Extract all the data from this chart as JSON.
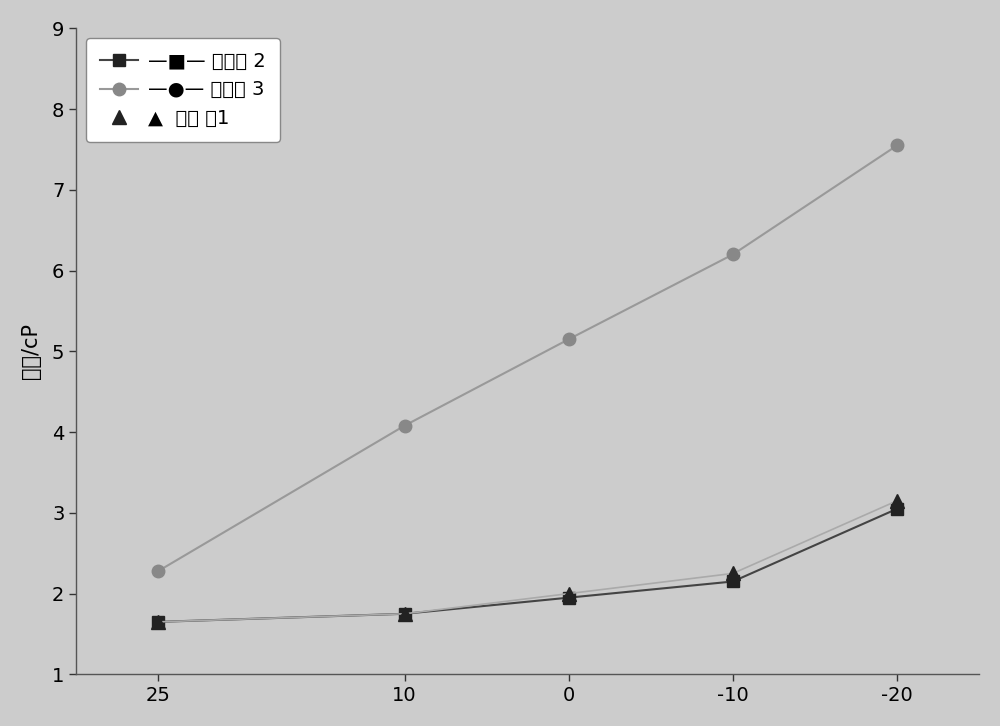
{
  "x": [
    25,
    10,
    0,
    -10,
    -20
  ],
  "series": [
    {
      "label": "对比例 2",
      "y": [
        1.65,
        1.75,
        1.95,
        2.15,
        3.05
      ],
      "line_color": "#444444",
      "marker_color": "#222222",
      "marker": "s",
      "markersize": 8,
      "linewidth": 1.5,
      "has_line": true
    },
    {
      "label": "对比例 3",
      "y": [
        2.28,
        4.08,
        5.15,
        6.2,
        7.55
      ],
      "line_color": "#999999",
      "marker_color": "#888888",
      "marker": "o",
      "markersize": 9,
      "linewidth": 1.5,
      "has_line": true
    },
    {
      "label": "实施 例1",
      "y": [
        1.65,
        1.75,
        2.0,
        2.25,
        3.15
      ],
      "line_color": "#aaaaaa",
      "marker_color": "#222222",
      "marker": "^",
      "markersize": 10,
      "linewidth": 1.2,
      "has_line": true
    }
  ],
  "ylabel": "粘度/cP",
  "ylim": [
    1,
    9
  ],
  "yticks": [
    1,
    2,
    3,
    4,
    5,
    6,
    7,
    8,
    9
  ],
  "xticks": [
    25,
    10,
    0,
    -10,
    -20
  ],
  "xlim": [
    30,
    -25
  ],
  "background_color": "#cccccc",
  "plot_bg_color": "#cccccc",
  "legend_fontsize": 14,
  "axis_fontsize": 15,
  "tick_fontsize": 14
}
